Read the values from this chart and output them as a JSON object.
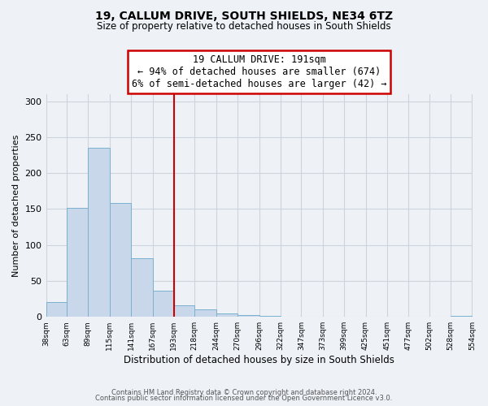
{
  "title": "19, CALLUM DRIVE, SOUTH SHIELDS, NE34 6TZ",
  "subtitle": "Size of property relative to detached houses in South Shields",
  "xlabel": "Distribution of detached houses by size in South Shields",
  "ylabel": "Number of detached properties",
  "footer_line1": "Contains HM Land Registry data © Crown copyright and database right 2024.",
  "footer_line2": "Contains public sector information licensed under the Open Government Licence v3.0.",
  "bin_edges": [
    38,
    63,
    89,
    115,
    141,
    167,
    193,
    218,
    244,
    270,
    296,
    322,
    347,
    373,
    399,
    425,
    451,
    477,
    502,
    528,
    554
  ],
  "bar_heights": [
    20,
    152,
    235,
    158,
    82,
    36,
    16,
    10,
    5,
    2,
    1,
    0,
    0,
    0,
    0,
    0,
    0,
    0,
    0,
    1
  ],
  "bar_color": "#c8d8ea",
  "bar_edge_color": "#7ab0d0",
  "vline_x": 193,
  "vline_color": "#cc0000",
  "ylim": [
    0,
    310
  ],
  "yticks": [
    0,
    50,
    100,
    150,
    200,
    250,
    300
  ],
  "annotation_title": "19 CALLUM DRIVE: 191sqm",
  "annotation_line1": "← 94% of detached houses are smaller (674)",
  "annotation_line2": "6% of semi-detached houses are larger (42) →",
  "annotation_box_color": "#cc0000",
  "background_color": "#eef2f7",
  "grid_color": "#ccd4de"
}
